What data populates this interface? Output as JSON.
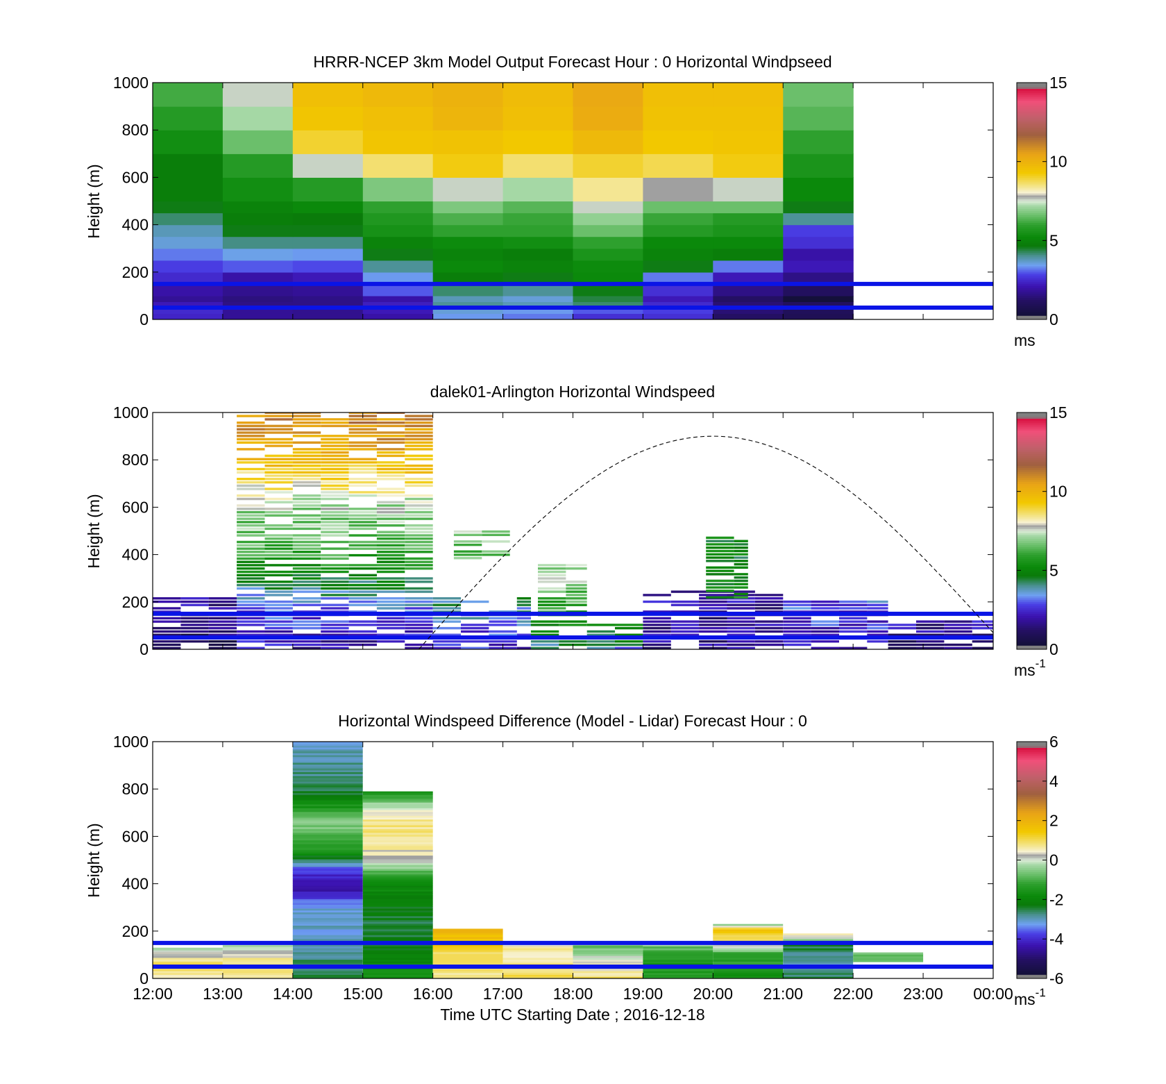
{
  "chart_data": [
    {
      "type": "heatmap",
      "title": "HRRR-NCEP 3km Model Output   Forecast Hour : 0 Horizontal Windpseed",
      "ylabel": "Height (m)",
      "xlabel": "",
      "x_ticks": [
        "12:00",
        "13:00",
        "14:00",
        "15:00",
        "16:00",
        "17:00",
        "18:00",
        "19:00",
        "20:00",
        "21:00",
        "22:00",
        "23:00",
        "00:00"
      ],
      "show_x_tick_labels": false,
      "y_ticks": [
        0,
        200,
        400,
        600,
        800,
        1000
      ],
      "ylim": [
        0,
        1000
      ],
      "xlim_hours": [
        12,
        24
      ],
      "colorbar": {
        "min": 0,
        "max": 15,
        "ticks": [
          "0",
          "5",
          "10",
          "15"
        ],
        "unit": "ms",
        "unit_sup": ""
      },
      "reference_lines_m": [
        150,
        50
      ],
      "grid_columns_hour_start": [
        12,
        13,
        14,
        15,
        16,
        17,
        18,
        19,
        20,
        21
      ],
      "levels_m": [
        [
          0,
          25
        ],
        [
          25,
          50
        ],
        [
          50,
          75
        ],
        [
          75,
          100
        ],
        [
          100,
          150
        ],
        [
          150,
          200
        ],
        [
          200,
          250
        ],
        [
          250,
          300
        ],
        [
          300,
          350
        ],
        [
          350,
          400
        ],
        [
          400,
          450
        ],
        [
          450,
          500
        ],
        [
          500,
          600
        ],
        [
          600,
          700
        ],
        [
          700,
          800
        ],
        [
          800,
          900
        ],
        [
          900,
          1000
        ]
      ],
      "values_ms": [
        [
          2.4,
          1.8,
          1.7,
          2.0,
          3.4,
          3.2,
          2.6,
          2.6,
          1.2,
          0.9
        ],
        [
          2.5,
          1.8,
          1.7,
          2.2,
          3.6,
          3.4,
          3.0,
          2.8,
          1.4,
          1.0
        ],
        [
          2.2,
          1.6,
          1.6,
          2.3,
          4.0,
          3.8,
          4.2,
          2.5,
          1.4,
          1.1
        ],
        [
          1.8,
          1.5,
          1.6,
          2.0,
          3.8,
          3.6,
          4.4,
          2.2,
          1.2,
          0.3
        ],
        [
          2.0,
          1.7,
          1.8,
          3.0,
          4.2,
          4.0,
          4.6,
          2.6,
          1.6,
          1.1
        ],
        [
          2.5,
          2.0,
          2.2,
          3.4,
          4.8,
          4.6,
          5.2,
          3.2,
          2.2,
          1.6
        ],
        [
          2.8,
          3.0,
          2.9,
          4.0,
          5.2,
          5.0,
          5.3,
          4.6,
          3.2,
          2.2
        ],
        [
          3.2,
          3.5,
          3.4,
          4.6,
          5.0,
          4.8,
          5.6,
          5.0,
          4.8,
          2.0
        ],
        [
          3.6,
          4.1,
          4.1,
          5.0,
          5.3,
          5.4,
          6.0,
          5.2,
          5.2,
          2.6
        ],
        [
          3.8,
          4.6,
          4.6,
          5.5,
          6.0,
          6.0,
          6.6,
          5.8,
          5.6,
          2.8
        ],
        [
          4.2,
          4.8,
          4.7,
          5.7,
          6.3,
          6.1,
          7.0,
          6.1,
          5.8,
          4.0
        ],
        [
          4.6,
          5.0,
          5.2,
          6.0,
          6.8,
          6.4,
          7.6,
          6.6,
          6.6,
          4.6
        ],
        [
          4.8,
          5.4,
          5.8,
          6.8,
          7.6,
          7.2,
          8.4,
          7.8,
          7.6,
          5.2
        ],
        [
          4.8,
          5.8,
          7.6,
          8.6,
          9.2,
          8.6,
          9.0,
          8.8,
          9.2,
          5.6
        ],
        [
          5.4,
          6.6,
          9.0,
          9.4,
          9.5,
          9.3,
          9.8,
          9.3,
          9.4,
          6.0
        ],
        [
          5.8,
          7.2,
          9.4,
          9.6,
          9.9,
          9.6,
          10.2,
          9.5,
          9.5,
          6.4
        ],
        [
          6.2,
          7.6,
          9.6,
          9.8,
          10.0,
          9.7,
          10.3,
          9.6,
          9.6,
          6.6
        ]
      ]
    },
    {
      "type": "heatmap",
      "title": "dalek01-Arlington  Horizontal Windspeed",
      "ylabel": "Height (m)",
      "xlabel": "",
      "x_ticks": [
        "12:00",
        "13:00",
        "14:00",
        "15:00",
        "16:00",
        "17:00",
        "18:00",
        "19:00",
        "20:00",
        "21:00",
        "22:00",
        "23:00",
        "00:00"
      ],
      "show_x_tick_labels": false,
      "y_ticks": [
        0,
        200,
        400,
        600,
        800,
        1000
      ],
      "ylim": [
        0,
        1000
      ],
      "xlim_hours": [
        12,
        24
      ],
      "colorbar": {
        "min": 0,
        "max": 15,
        "ticks": [
          "0",
          "5",
          "10",
          "15"
        ],
        "unit": "ms",
        "unit_sup": "-1"
      },
      "reference_lines_m": [
        150,
        50
      ],
      "boundary_layer_curve": {
        "start_hour": 15.8,
        "peak_hour": 20.0,
        "peak_m": 900,
        "end_hour": 24.0,
        "end_m": 70
      },
      "profile_blocks": [
        {
          "x0": 13.2,
          "x1": 16.0,
          "y0": 0,
          "y1": 1000,
          "speed_by_height": [
            [
              0,
              2.0
            ],
            [
              200,
              3.4
            ],
            [
              300,
              5.0
            ],
            [
              450,
              6.4
            ],
            [
              600,
              7.2
            ],
            [
              700,
              8.6
            ],
            [
              850,
              10.4
            ],
            [
              1000,
              11.0
            ]
          ]
        },
        {
          "x0": 16.0,
          "x1": 17.4,
          "y0": 0,
          "y1": 220,
          "speed_by_height": [
            [
              0,
              2.4
            ],
            [
              100,
              3.0
            ],
            [
              220,
              4.6
            ]
          ]
        },
        {
          "x0": 17.4,
          "x1": 19.0,
          "y0": 0,
          "y1": 120,
          "speed_by_height": [
            [
              0,
              3.6
            ],
            [
              60,
              4.8
            ],
            [
              120,
              5.0
            ]
          ]
        },
        {
          "x0": 19.0,
          "x1": 21.0,
          "y0": 0,
          "y1": 240,
          "speed_by_height": [
            [
              0,
              1.6
            ],
            [
              120,
              1.8
            ],
            [
              240,
              2.2
            ]
          ]
        },
        {
          "x0": 21.0,
          "x1": 22.5,
          "y0": 0,
          "y1": 200,
          "speed_by_height": [
            [
              0,
              2.0
            ],
            [
              100,
              2.6
            ],
            [
              200,
              3.0
            ]
          ]
        },
        {
          "x0": 22.5,
          "x1": 24.0,
          "y0": 0,
          "y1": 120,
          "speed_by_height": [
            [
              0,
              1.4
            ],
            [
              60,
              1.7
            ],
            [
              120,
              2.0
            ]
          ]
        },
        {
          "x0": 12.0,
          "x1": 13.2,
          "y0": 0,
          "y1": 220,
          "speed_by_height": [
            [
              0,
              0.8
            ],
            [
              100,
              1.4
            ],
            [
              220,
              2.0
            ]
          ]
        },
        {
          "x0": 17.5,
          "x1": 18.2,
          "y0": 140,
          "y1": 360,
          "speed_by_height": [
            [
              140,
              5.6
            ],
            [
              250,
              6.8
            ],
            [
              360,
              7.4
            ]
          ]
        },
        {
          "x0": 19.9,
          "x1": 20.5,
          "y0": 200,
          "y1": 480,
          "speed_by_height": [
            [
              200,
              5.2
            ],
            [
              350,
              5.0
            ],
            [
              480,
              4.8
            ]
          ]
        },
        {
          "x0": 16.3,
          "x1": 17.1,
          "y0": 380,
          "y1": 500,
          "speed_by_height": [
            [
              380,
              6.6
            ],
            [
              500,
              6.8
            ]
          ]
        }
      ]
    },
    {
      "type": "heatmap",
      "title": "Horizontal Windspeed Difference (Model - Lidar) Forecast Hour : 0",
      "ylabel": "Height (m)",
      "xlabel": "Time UTC  Starting Date ; 2016-12-18",
      "x_ticks": [
        "12:00",
        "13:00",
        "14:00",
        "15:00",
        "16:00",
        "17:00",
        "18:00",
        "19:00",
        "20:00",
        "21:00",
        "22:00",
        "23:00",
        "00:00"
      ],
      "show_x_tick_labels": true,
      "y_ticks": [
        0,
        200,
        400,
        600,
        800,
        1000
      ],
      "ylim": [
        0,
        1000
      ],
      "xlim_hours": [
        12,
        24
      ],
      "colorbar": {
        "min": -6,
        "max": 6,
        "ticks": [
          "-6",
          "-4",
          "-2",
          "0",
          "2",
          "4",
          "6"
        ],
        "unit": "ms",
        "unit_sup": "-1"
      },
      "reference_lines_m": [
        150,
        50
      ],
      "diff_blocks": [
        {
          "x0": 14,
          "x1": 15,
          "y0": 0,
          "y1": 1000,
          "diff_by_height": [
            [
              0,
              -2.4
            ],
            [
              150,
              -3.0
            ],
            [
              300,
              -3.2
            ],
            [
              380,
              -4.6
            ],
            [
              450,
              -3.8
            ],
            [
              550,
              -1.2
            ],
            [
              650,
              -0.5
            ],
            [
              800,
              -2.6
            ],
            [
              1000,
              -3.0
            ]
          ]
        },
        {
          "x0": 15,
          "x1": 16,
          "y0": 0,
          "y1": 790,
          "diff_by_height": [
            [
              0,
              -1.6
            ],
            [
              200,
              -2.6
            ],
            [
              400,
              -1.8
            ],
            [
              500,
              0.3
            ],
            [
              600,
              0.9
            ],
            [
              700,
              0.5
            ],
            [
              790,
              -1.8
            ]
          ]
        },
        {
          "x0": 16,
          "x1": 17,
          "y0": 0,
          "y1": 210,
          "diff_by_height": [
            [
              0,
              0.8
            ],
            [
              100,
              0.9
            ],
            [
              160,
              1.6
            ],
            [
              210,
              2.0
            ]
          ]
        },
        {
          "x0": 17,
          "x1": 18,
          "y0": 0,
          "y1": 140,
          "diff_by_height": [
            [
              0,
              1.0
            ],
            [
              70,
              0.7
            ],
            [
              140,
              0.6
            ]
          ]
        },
        {
          "x0": 18,
          "x1": 19,
          "y0": 0,
          "y1": 140,
          "diff_by_height": [
            [
              0,
              0.9
            ],
            [
              70,
              0.2
            ],
            [
              140,
              -1.0
            ]
          ]
        },
        {
          "x0": 19,
          "x1": 20,
          "y0": 0,
          "y1": 140,
          "diff_by_height": [
            [
              0,
              -1.2
            ],
            [
              70,
              -1.6
            ],
            [
              140,
              -0.6
            ]
          ]
        },
        {
          "x0": 20,
          "x1": 21,
          "y0": 0,
          "y1": 230,
          "diff_by_height": [
            [
              0,
              -1.6
            ],
            [
              100,
              -1.2
            ],
            [
              150,
              0.8
            ],
            [
              200,
              1.5
            ],
            [
              230,
              -0.8
            ]
          ]
        },
        {
          "x0": 21,
          "x1": 22,
          "y0": 0,
          "y1": 190,
          "diff_by_height": [
            [
              0,
              -2.6
            ],
            [
              60,
              -3.0
            ],
            [
              140,
              -2.4
            ],
            [
              170,
              0.4
            ],
            [
              190,
              0.5
            ]
          ]
        },
        {
          "x0": 22,
          "x1": 23,
          "y0": 70,
          "y1": 110,
          "diff_by_height": [
            [
              70,
              -0.8
            ],
            [
              110,
              -0.6
            ]
          ]
        },
        {
          "x0": 12,
          "x1": 13,
          "y0": 0,
          "y1": 130,
          "diff_by_height": [
            [
              0,
              0.7
            ],
            [
              60,
              0.9
            ],
            [
              130,
              -0.2
            ]
          ]
        },
        {
          "x0": 13,
          "x1": 14,
          "y0": 0,
          "y1": 140,
          "diff_by_height": [
            [
              0,
              0.6
            ],
            [
              70,
              0.8
            ],
            [
              140,
              -0.4
            ]
          ]
        }
      ]
    }
  ]
}
